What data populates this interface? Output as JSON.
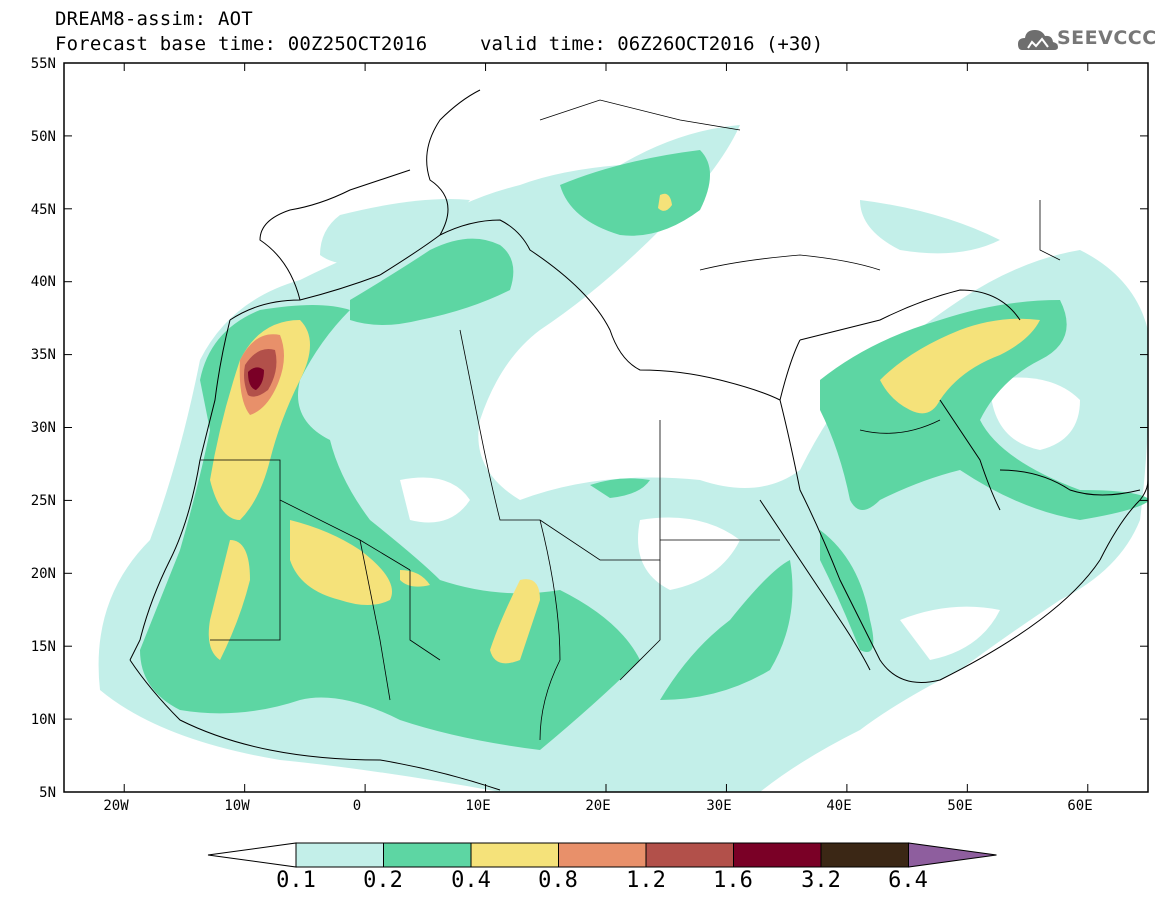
{
  "header": {
    "title_line1": "DREAM8-assim: AOT",
    "title_line2": "Forecast base time: 00Z25OCT2016",
    "valid_time": "valid time: 06Z26OCT2016 (+30)",
    "logo_text": "SEEVCCC"
  },
  "map": {
    "lat_labels": [
      "55N",
      "50N",
      "45N",
      "40N",
      "35N",
      "30N",
      "25N",
      "20N",
      "15N",
      "10N",
      "5N"
    ],
    "lon_labels": [
      "20W",
      "10W",
      "0",
      "10E",
      "20E",
      "30E",
      "40E",
      "50E",
      "60E"
    ],
    "lon_range": [
      -25,
      65
    ],
    "lat_range": [
      5,
      55
    ]
  },
  "colorbar": {
    "labels": [
      "0.1",
      "0.2",
      "0.4",
      "0.8",
      "1.2",
      "1.6",
      "3.2",
      "6.4"
    ],
    "colors": [
      "#ffffff",
      "#c3efe9",
      "#5dd6a3",
      "#f5e27a",
      "#e8906a",
      "#b2504a",
      "#7a0026",
      "#3b2715",
      "#8e5e9e"
    ]
  },
  "legend_colors": {
    "low": "#c3efe9",
    "mid": "#5dd6a3",
    "high": "#f5e27a",
    "very_high": "#e8906a",
    "extreme": "#b2504a",
    "max": "#7a0026"
  }
}
